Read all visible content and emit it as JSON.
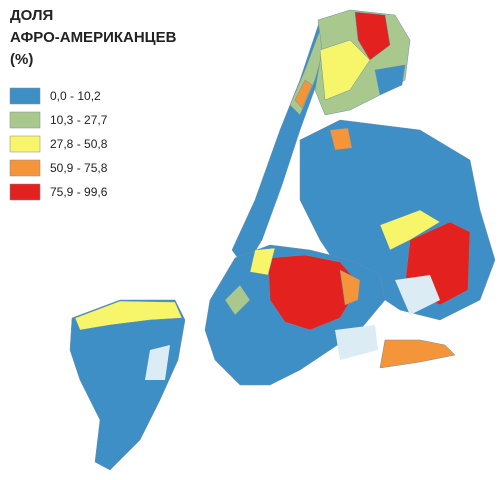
{
  "title": [
    "ДОЛЯ",
    "АФРО-АМЕРИКАНЦЕВ",
    "(%)"
  ],
  "legend": [
    {
      "label": "0,0 - 10,2",
      "color": "#3d8fc6"
    },
    {
      "label": "10,3 - 27,7",
      "color": "#a8c88e"
    },
    {
      "label": "27,8 - 50,8",
      "color": "#f7f56a"
    },
    {
      "label": "50,9 - 75,8",
      "color": "#f5953a"
    },
    {
      "label": "75,9 - 99,6",
      "color": "#e3211f"
    }
  ]
}
